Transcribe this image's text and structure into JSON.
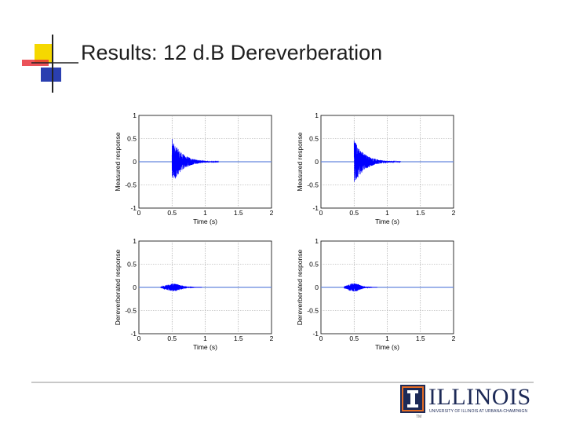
{
  "slide": {
    "title": "Results: 12 d.B Dereverberation"
  },
  "logo": {
    "wordmark": "ILLINOIS",
    "subtitle": "UNIVERSITY OF ILLINOIS AT URBANA-CHAMPAIGN",
    "trademark": "TM",
    "brand_color": "#1d2a57"
  },
  "colors": {
    "signal": "#0000ff",
    "baseline": "#6688dd",
    "grid": "#9a9a9a",
    "deco_yellow": "#f5d800",
    "deco_red": "#e8343c",
    "deco_blue": "#2a3fb0"
  },
  "chart_data": [
    {
      "type": "line",
      "title": "",
      "xlabel": "Time (s)",
      "ylabel": "Measured response",
      "xlim": [
        0,
        2
      ],
      "ylim": [
        -1,
        1
      ],
      "xticks": [
        "0",
        "0.5",
        "1",
        "1.5",
        "2"
      ],
      "yticks": [
        "1",
        "0.5",
        "0",
        "-0.5",
        "-1"
      ],
      "grid": true,
      "signal": {
        "onset": 0.5,
        "peak": 0.5,
        "decay_end": 1.2,
        "decay_rate": 6.5
      }
    },
    {
      "type": "line",
      "title": "",
      "xlabel": "Time (s)",
      "ylabel": "Measured response",
      "xlim": [
        0,
        2
      ],
      "ylim": [
        -1,
        1
      ],
      "xticks": [
        "0",
        "0.5",
        "1",
        "1.5",
        "2"
      ],
      "yticks": [
        "1",
        "0.5",
        "0",
        "-0.5",
        "-1"
      ],
      "grid": true,
      "signal": {
        "onset": 0.5,
        "peak": 0.5,
        "decay_end": 1.2,
        "decay_rate": 6.5
      }
    },
    {
      "type": "line",
      "title": "",
      "xlabel": "Time (s)",
      "ylabel": "Dereverberated response",
      "xlim": [
        0,
        2
      ],
      "ylim": [
        -1,
        1
      ],
      "xticks": [
        "0",
        "0.5",
        "1",
        "1.5",
        "2"
      ],
      "yticks": [
        "1",
        "0.5",
        "0",
        "-0.5",
        "-1"
      ],
      "grid": true,
      "signal": {
        "onset": 0.33,
        "peak": 0.08,
        "decay_end": 0.95,
        "center": 0.52
      }
    },
    {
      "type": "line",
      "title": "",
      "xlabel": "Time (s)",
      "ylabel": "Dereverberated response",
      "xlim": [
        0,
        2
      ],
      "ylim": [
        -1,
        1
      ],
      "xticks": [
        "0",
        "0.5",
        "1",
        "1.5",
        "2"
      ],
      "yticks": [
        "1",
        "0.5",
        "0",
        "-0.5",
        "-1"
      ],
      "grid": true,
      "signal": {
        "onset": 0.35,
        "peak": 0.09,
        "decay_end": 0.85,
        "center": 0.5
      }
    }
  ]
}
